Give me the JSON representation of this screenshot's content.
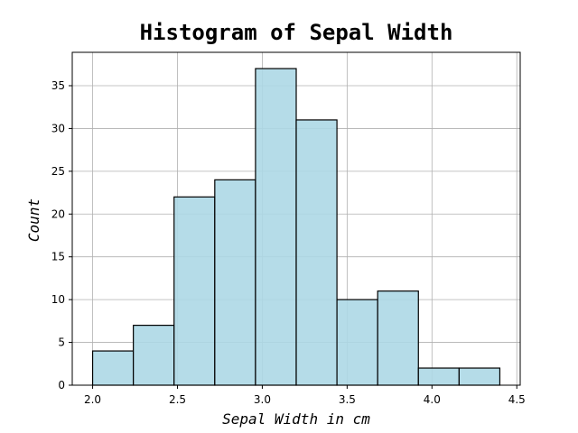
{
  "chart_data": {
    "type": "bar",
    "title": "Histogram of Sepal Width",
    "xlabel": "Sepal Width in cm",
    "ylabel": "Count",
    "bin_edges": [
      2.0,
      2.24,
      2.48,
      2.72,
      2.96,
      3.2,
      3.44,
      3.68,
      3.92,
      4.16,
      4.4
    ],
    "values": [
      4,
      7,
      22,
      24,
      37,
      31,
      10,
      11,
      2,
      2
    ],
    "xlim": [
      1.88,
      4.52
    ],
    "ylim": [
      0,
      38.9
    ],
    "xticks": [
      "2.0",
      "2.5",
      "3.0",
      "3.5",
      "4.0",
      "4.5"
    ],
    "yticks": [
      "0",
      "5",
      "10",
      "15",
      "20",
      "25",
      "30",
      "35"
    ],
    "grid": true,
    "bar_color": "#add8e6",
    "edge_color": "#000000"
  }
}
